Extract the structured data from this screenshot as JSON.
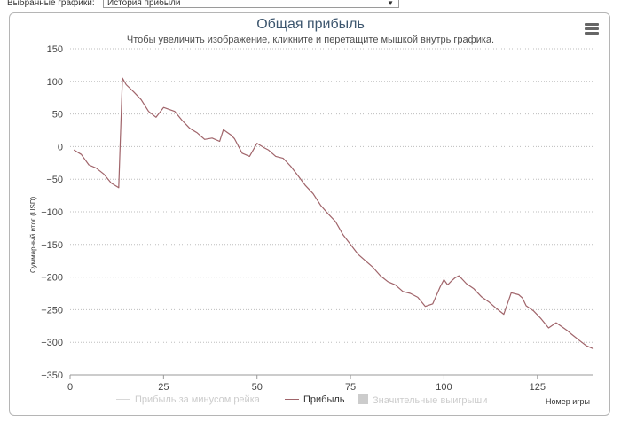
{
  "topbar": {
    "label": "Выбранные графики:",
    "selected": "История прибыли",
    "arrow": "▼"
  },
  "chart_data": {
    "type": "line",
    "title": "Общая прибыль",
    "subtitle": "Чтобы увеличить изображение, кликните и перетащите мышкой внутрь графика.",
    "xlabel": "Номер игры",
    "ylabel": "Суммарный итог (USD)",
    "xlim": [
      0,
      140
    ],
    "ylim": [
      -350,
      150
    ],
    "xticks": [
      "0",
      "25",
      "50",
      "75",
      "100",
      "125"
    ],
    "yticks": [
      "150",
      "100",
      "50",
      "0",
      "−50",
      "−100",
      "−150",
      "−200",
      "−250",
      "−300",
      "−350"
    ],
    "grid": true,
    "series": [
      {
        "name": "Прибыль за минусом рейка",
        "visible": false,
        "color": "#d8d8d8",
        "values": []
      },
      {
        "name": "Прибыль",
        "visible": true,
        "color": "#a0646a",
        "x": [
          1,
          3,
          5,
          7,
          9,
          11,
          13,
          14,
          15,
          17,
          19,
          21,
          23,
          25,
          26,
          28,
          30,
          32,
          34,
          36,
          38,
          40,
          41,
          43,
          44,
          46,
          48,
          50,
          52,
          53,
          55,
          57,
          59,
          61,
          63,
          65,
          67,
          69,
          71,
          73,
          75,
          77,
          79,
          81,
          83,
          85,
          87,
          89,
          91,
          93,
          95,
          97,
          99,
          100,
          101,
          102,
          103,
          104,
          105,
          106,
          108,
          110,
          112,
          114,
          116,
          118,
          120,
          121,
          122,
          124,
          126,
          128,
          130,
          132,
          133,
          134,
          136,
          138,
          140
        ],
        "y": [
          -5,
          -12,
          -28,
          -33,
          -42,
          -56,
          -63,
          105,
          95,
          84,
          72,
          54,
          45,
          60,
          58,
          54,
          40,
          28,
          21,
          11,
          13,
          8,
          26,
          18,
          12,
          -10,
          -15,
          5,
          -2,
          -5,
          -15,
          -18,
          -30,
          -45,
          -60,
          -72,
          -90,
          -103,
          -115,
          -135,
          -150,
          -165,
          -175,
          -185,
          -198,
          -207,
          -212,
          -222,
          -225,
          -231,
          -245,
          -241,
          -215,
          -204,
          -212,
          -206,
          -201,
          -198,
          -204,
          -210,
          -218,
          -230,
          -238,
          -248,
          -257,
          -224,
          -227,
          -232,
          -244,
          -252,
          -264,
          -278,
          -270,
          -278,
          -282,
          -287,
          -296,
          -305,
          -310
        ]
      },
      {
        "name": "Значительные выигрыши",
        "visible": false,
        "color": "#cccccc",
        "values": []
      }
    ],
    "legend": "bottom-center"
  },
  "menu": {
    "icon": "hamburger-menu-icon"
  }
}
